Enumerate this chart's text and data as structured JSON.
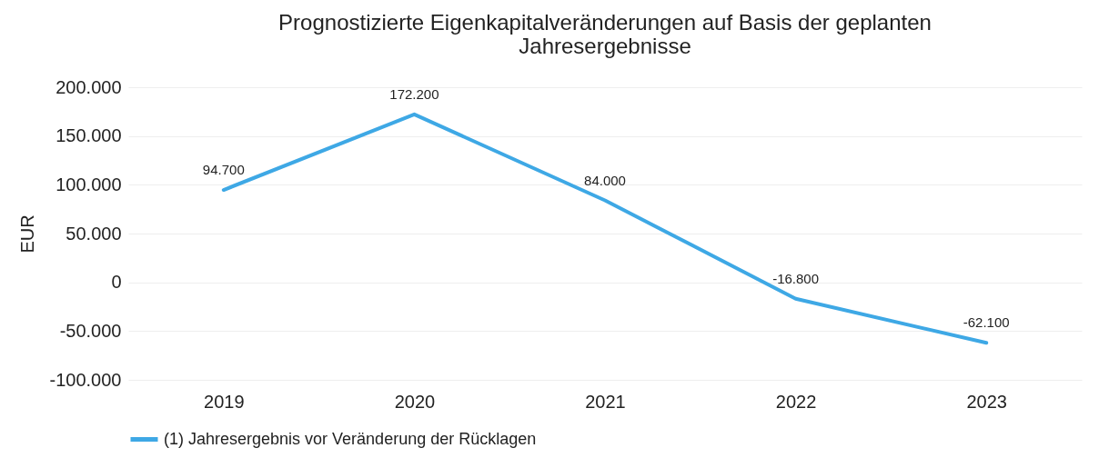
{
  "chart_data": {
    "type": "line",
    "title": "Prognostizierte Eigenkapitalveränderungen auf Basis der geplanten Jahresergebnisse",
    "ylabel": "EUR",
    "categories": [
      "2019",
      "2020",
      "2021",
      "2022",
      "2023"
    ],
    "series": [
      {
        "name": "(1) Jahresergebnis vor Veränderung der Rücklagen",
        "color": "#3ea8e5",
        "values": [
          94700,
          172200,
          84000,
          -16800,
          -62100
        ],
        "value_labels": [
          "94.700",
          "172.200",
          "84.000",
          "-16.800",
          "-62.100"
        ]
      }
    ],
    "ylim": [
      -100000,
      200000
    ],
    "yticks": [
      {
        "value": -100000,
        "label": "-100.000"
      },
      {
        "value": -50000,
        "label": "-50.000"
      },
      0,
      {
        "value": 50000,
        "label": "50.000"
      },
      {
        "value": 100000,
        "label": "100.000"
      },
      {
        "value": 150000,
        "label": "150.000"
      },
      {
        "value": 200000,
        "label": "200.000"
      }
    ],
    "grid": "y",
    "legend": "bottom",
    "marker": "none",
    "line_style": "solid"
  }
}
